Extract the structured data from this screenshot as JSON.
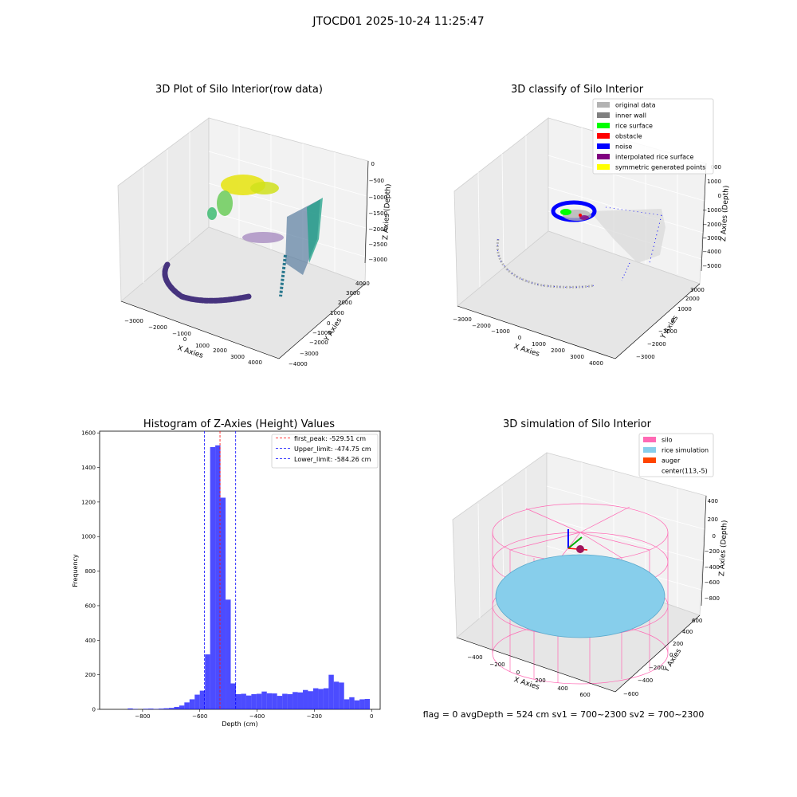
{
  "page": {
    "suptitle": "JTOCD01 2025-10-24 11:25:47",
    "status_line": "flag = 0     avgDepth = 524 cm  sv1 = 700~2300  sv2 = 700~2300"
  },
  "panels": {
    "raw": {
      "title": "3D Plot of Silo Interior(row data)",
      "xlabel": "X Axies",
      "ylabel": "Y Axies",
      "zlabel": "Z Axies (Depth)",
      "xticks": [
        "−3000",
        "−2000",
        "−1000",
        "0",
        "1000",
        "2000",
        "3000",
        "4000"
      ],
      "yticks": [
        "−4000",
        "−3000",
        "−2000",
        "−1000",
        "0",
        "1000",
        "2000",
        "3000",
        "4000"
      ],
      "zticks": [
        "0",
        "−500",
        "−1000",
        "−1500",
        "−2000",
        "−2500",
        "−3000"
      ]
    },
    "classify": {
      "title": "3D classify of Silo Interior",
      "xlabel": "X Axies",
      "ylabel": "Y Axies",
      "zlabel": "Z Axies (Depth)",
      "xticks": [
        "−3000",
        "−2000",
        "−1000",
        "0",
        "1000",
        "2000",
        "3000",
        "4000"
      ],
      "yticks": [
        "−3000",
        "−2000",
        "−1000",
        "0",
        "1000",
        "2000",
        "3000"
      ],
      "zticks": [
        "1000",
        "0",
        "−1000",
        "−2000",
        "−3000",
        "−4000",
        "−5000"
      ],
      "ztick_partial": "000",
      "legend": [
        {
          "label": "original data",
          "color": "#b3b3b3"
        },
        {
          "label": "inner wall",
          "color": "#808080"
        },
        {
          "label": "rice surface",
          "color": "#00ff00"
        },
        {
          "label": "obstacle",
          "color": "#ff0000"
        },
        {
          "label": "noise",
          "color": "#0000ff"
        },
        {
          "label": "interpolated rice surface",
          "color": "#800080"
        },
        {
          "label": "symmetric generated points",
          "color": "#ffff00"
        }
      ]
    },
    "simulation": {
      "title": "3D simulation of Silo Interior",
      "xlabel": "X Axies",
      "ylabel": "Y Axies",
      "zlabel": "Z Axies (Depth)",
      "xticks": [
        "−400",
        "−200",
        "0",
        "200",
        "400",
        "600"
      ],
      "yticks": [
        "−600",
        "−400",
        "−200",
        "0",
        "200",
        "400",
        "600"
      ],
      "zticks": [
        "400",
        "200",
        "0",
        "−200",
        "−400",
        "−600",
        "−800"
      ],
      "legend": [
        {
          "label": "silo",
          "color": "#ff69b4"
        },
        {
          "label": "rice simulation",
          "color": "#87ceeb"
        },
        {
          "label": "auger",
          "color": "#ff4500"
        },
        {
          "label": "center(113,-5)",
          "color": "#ffffff"
        }
      ]
    }
  },
  "chart_data": {
    "type": "bar",
    "title": "Histogram of Z-Axies (Height) Values",
    "xlabel": "Depth (cm)",
    "ylabel": "Frequency",
    "xlim": [
      -950,
      30
    ],
    "ylim": [
      0,
      1610
    ],
    "xticks": [
      -800,
      -600,
      -400,
      -200,
      0
    ],
    "xtick_labels": [
      "−800",
      "−600",
      "−400",
      "−200",
      "0"
    ],
    "yticks": [
      0,
      200,
      400,
      600,
      800,
      1000,
      1200,
      1400,
      1600
    ],
    "bar_color": "#0000ff",
    "bins": [
      {
        "x0": -924,
        "x1": -906,
        "value": 0
      },
      {
        "x0": -906,
        "x1": -888,
        "value": 0
      },
      {
        "x0": -888,
        "x1": -870,
        "value": 0
      },
      {
        "x0": -870,
        "x1": -852,
        "value": 0
      },
      {
        "x0": -852,
        "x1": -834,
        "value": 5
      },
      {
        "x0": -834,
        "x1": -816,
        "value": 2
      },
      {
        "x0": -816,
        "x1": -798,
        "value": 0
      },
      {
        "x0": -798,
        "x1": -780,
        "value": 3
      },
      {
        "x0": -780,
        "x1": -762,
        "value": 4
      },
      {
        "x0": -762,
        "x1": -744,
        "value": 2
      },
      {
        "x0": -744,
        "x1": -726,
        "value": 4
      },
      {
        "x0": -726,
        "x1": -708,
        "value": 6
      },
      {
        "x0": -708,
        "x1": -690,
        "value": 8
      },
      {
        "x0": -690,
        "x1": -672,
        "value": 14
      },
      {
        "x0": -672,
        "x1": -654,
        "value": 22
      },
      {
        "x0": -654,
        "x1": -636,
        "value": 40
      },
      {
        "x0": -636,
        "x1": -618,
        "value": 58
      },
      {
        "x0": -618,
        "x1": -600,
        "value": 85
      },
      {
        "x0": -600,
        "x1": -582,
        "value": 108
      },
      {
        "x0": -582,
        "x1": -564,
        "value": 318
      },
      {
        "x0": -564,
        "x1": -546,
        "value": 1518
      },
      {
        "x0": -546,
        "x1": -528,
        "value": 1528
      },
      {
        "x0": -528,
        "x1": -510,
        "value": 1225
      },
      {
        "x0": -510,
        "x1": -492,
        "value": 635
      },
      {
        "x0": -492,
        "x1": -474,
        "value": 150
      },
      {
        "x0": -474,
        "x1": -456,
        "value": 88
      },
      {
        "x0": -456,
        "x1": -438,
        "value": 90
      },
      {
        "x0": -438,
        "x1": -420,
        "value": 80
      },
      {
        "x0": -420,
        "x1": -402,
        "value": 88
      },
      {
        "x0": -402,
        "x1": -384,
        "value": 90
      },
      {
        "x0": -384,
        "x1": -366,
        "value": 103
      },
      {
        "x0": -366,
        "x1": -348,
        "value": 93
      },
      {
        "x0": -348,
        "x1": -330,
        "value": 92
      },
      {
        "x0": -330,
        "x1": -312,
        "value": 78
      },
      {
        "x0": -312,
        "x1": -294,
        "value": 90
      },
      {
        "x0": -294,
        "x1": -276,
        "value": 88
      },
      {
        "x0": -276,
        "x1": -258,
        "value": 100
      },
      {
        "x0": -258,
        "x1": -240,
        "value": 98
      },
      {
        "x0": -240,
        "x1": -222,
        "value": 112
      },
      {
        "x0": -222,
        "x1": -204,
        "value": 105
      },
      {
        "x0": -204,
        "x1": -186,
        "value": 122
      },
      {
        "x0": -186,
        "x1": -168,
        "value": 118
      },
      {
        "x0": -168,
        "x1": -150,
        "value": 122
      },
      {
        "x0": -150,
        "x1": -132,
        "value": 200
      },
      {
        "x0": -132,
        "x1": -114,
        "value": 160
      },
      {
        "x0": -114,
        "x1": -96,
        "value": 155
      },
      {
        "x0": -96,
        "x1": -78,
        "value": 58
      },
      {
        "x0": -78,
        "x1": -60,
        "value": 70
      },
      {
        "x0": -60,
        "x1": -42,
        "value": 52
      },
      {
        "x0": -42,
        "x1": -24,
        "value": 58
      },
      {
        "x0": -24,
        "x1": -6,
        "value": 60
      }
    ],
    "vlines": [
      {
        "label": "first_peak: -529.51 cm",
        "x": -529.51,
        "color": "#ff0000"
      },
      {
        "label": "Upper_limit: -474.75 cm",
        "x": -474.75,
        "color": "#0000ff"
      },
      {
        "label": "Lower_limit: -584.26 cm",
        "x": -584.26,
        "color": "#0000ff"
      }
    ],
    "legend_position": "top-right"
  }
}
